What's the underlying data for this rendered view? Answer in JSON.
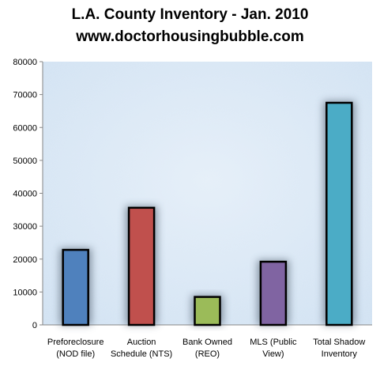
{
  "titles": {
    "line1": "L.A. County Inventory - Jan. 2010",
    "line2": "www.doctorhousingbubble.com"
  },
  "chart_data": {
    "type": "bar",
    "title": "L.A. County Inventory - Jan. 2010",
    "subtitle": "www.doctorhousingbubble.com",
    "xlabel": "",
    "ylabel": "",
    "ylim": [
      0,
      80000
    ],
    "yticks": [
      0,
      10000,
      20000,
      30000,
      40000,
      50000,
      60000,
      70000,
      80000
    ],
    "grid": false,
    "categories": [
      [
        "Preforeclosure",
        "(NOD file)"
      ],
      [
        "Auction",
        "Schedule (NTS)"
      ],
      [
        "Bank Owned",
        "(REO)"
      ],
      [
        "MLS (Public",
        "View)"
      ],
      [
        "Total Shadow",
        "Inventory"
      ]
    ],
    "values": [
      22800,
      35600,
      8500,
      19200,
      67500
    ],
    "colors": [
      "#4f81bd",
      "#c0504d",
      "#9bbb59",
      "#8064a2",
      "#4bacc6"
    ],
    "bar_outline": "#000000",
    "plot_background": "#dce9f5"
  }
}
